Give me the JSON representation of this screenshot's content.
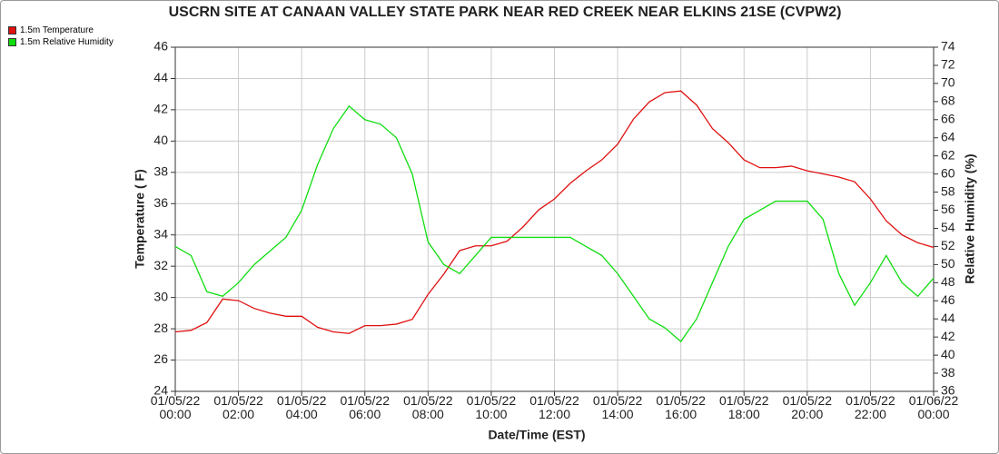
{
  "chart_data": {
    "type": "line",
    "title": "USCRN SITE AT CANAAN VALLEY STATE PARK NEAR RED CREEK NEAR ELKINS 21SE (CVPW2)",
    "x_label": "Date/Time (EST)",
    "y_label": "Temperature ( F)",
    "y2_label": "Relative Humidity (%)",
    "legend": "top-left",
    "grid": true,
    "x": [
      0,
      0.5,
      1,
      1.5,
      2,
      2.5,
      3,
      3.5,
      4,
      4.5,
      5,
      5.5,
      6,
      6.5,
      7,
      7.5,
      8,
      8.5,
      9,
      9.5,
      10,
      10.5,
      11,
      11.5,
      12,
      12.5,
      13,
      13.5,
      14,
      14.5,
      15,
      15.5,
      16,
      16.5,
      17,
      17.5,
      18,
      18.5,
      19,
      19.5,
      20,
      20.5,
      21,
      21.5,
      22,
      22.5,
      23,
      23.5,
      24
    ],
    "series": [
      {
        "name": "1.5m Temperature",
        "color": "#e01010",
        "values": [
          27.8,
          27.9,
          28.4,
          29.9,
          29.8,
          29.3,
          29.0,
          28.8,
          28.8,
          28.1,
          27.8,
          27.7,
          28.2,
          28.2,
          28.3,
          28.6,
          30.2,
          31.5,
          33.0,
          33.3,
          33.3,
          33.6,
          34.5,
          35.6,
          36.3,
          37.3,
          38.1,
          38.8,
          39.8,
          41.4,
          42.5,
          43.1,
          43.2,
          42.3,
          40.8,
          39.9,
          38.8,
          38.3,
          38.3,
          38.4,
          38.1,
          37.9,
          37.7,
          37.4,
          36.3,
          34.9,
          34.0,
          33.5,
          33.2
        ]
      },
      {
        "name": "1.5m Relative Humidity",
        "color": "#10dd10",
        "axis": "y2",
        "values": [
          52,
          51,
          47,
          46.5,
          48,
          50,
          51.5,
          53,
          56,
          61,
          65,
          67.5,
          66,
          65.5,
          64,
          60,
          52.5,
          50,
          49,
          51,
          53,
          53,
          53,
          53,
          53,
          53,
          52,
          51,
          49,
          46.5,
          44,
          43,
          41.5,
          44,
          48,
          52,
          55,
          56,
          57,
          57,
          57,
          55,
          49,
          45.5,
          48,
          51,
          48,
          46.5,
          48.5
        ]
      }
    ],
    "xlim": [
      0,
      24
    ],
    "xticks": [
      {
        "value": 0,
        "label": "01/05/22\n00:00"
      },
      {
        "value": 2,
        "label": "01/05/22\n02:00"
      },
      {
        "value": 4,
        "label": "01/05/22\n04:00"
      },
      {
        "value": 6,
        "label": "01/05/22\n06:00"
      },
      {
        "value": 8,
        "label": "01/05/22\n08:00"
      },
      {
        "value": 10,
        "label": "01/05/22\n10:00"
      },
      {
        "value": 12,
        "label": "01/05/22\n12:00"
      },
      {
        "value": 14,
        "label": "01/05/22\n14:00"
      },
      {
        "value": 16,
        "label": "01/05/22\n16:00"
      },
      {
        "value": 18,
        "label": "01/05/22\n18:00"
      },
      {
        "value": 20,
        "label": "01/05/22\n20:00"
      },
      {
        "value": 22,
        "label": "01/05/22\n22:00"
      },
      {
        "value": 24,
        "label": "01/06/22\n00:00"
      }
    ],
    "ylim": [
      24,
      46
    ],
    "yticks": [
      24,
      26,
      28,
      30,
      32,
      34,
      36,
      38,
      40,
      42,
      44,
      46
    ],
    "y2lim": [
      36,
      74
    ],
    "y2ticks": [
      36,
      38,
      40,
      42,
      44,
      46,
      48,
      50,
      52,
      54,
      56,
      58,
      60,
      62,
      64,
      66,
      68,
      70,
      72,
      74
    ]
  }
}
